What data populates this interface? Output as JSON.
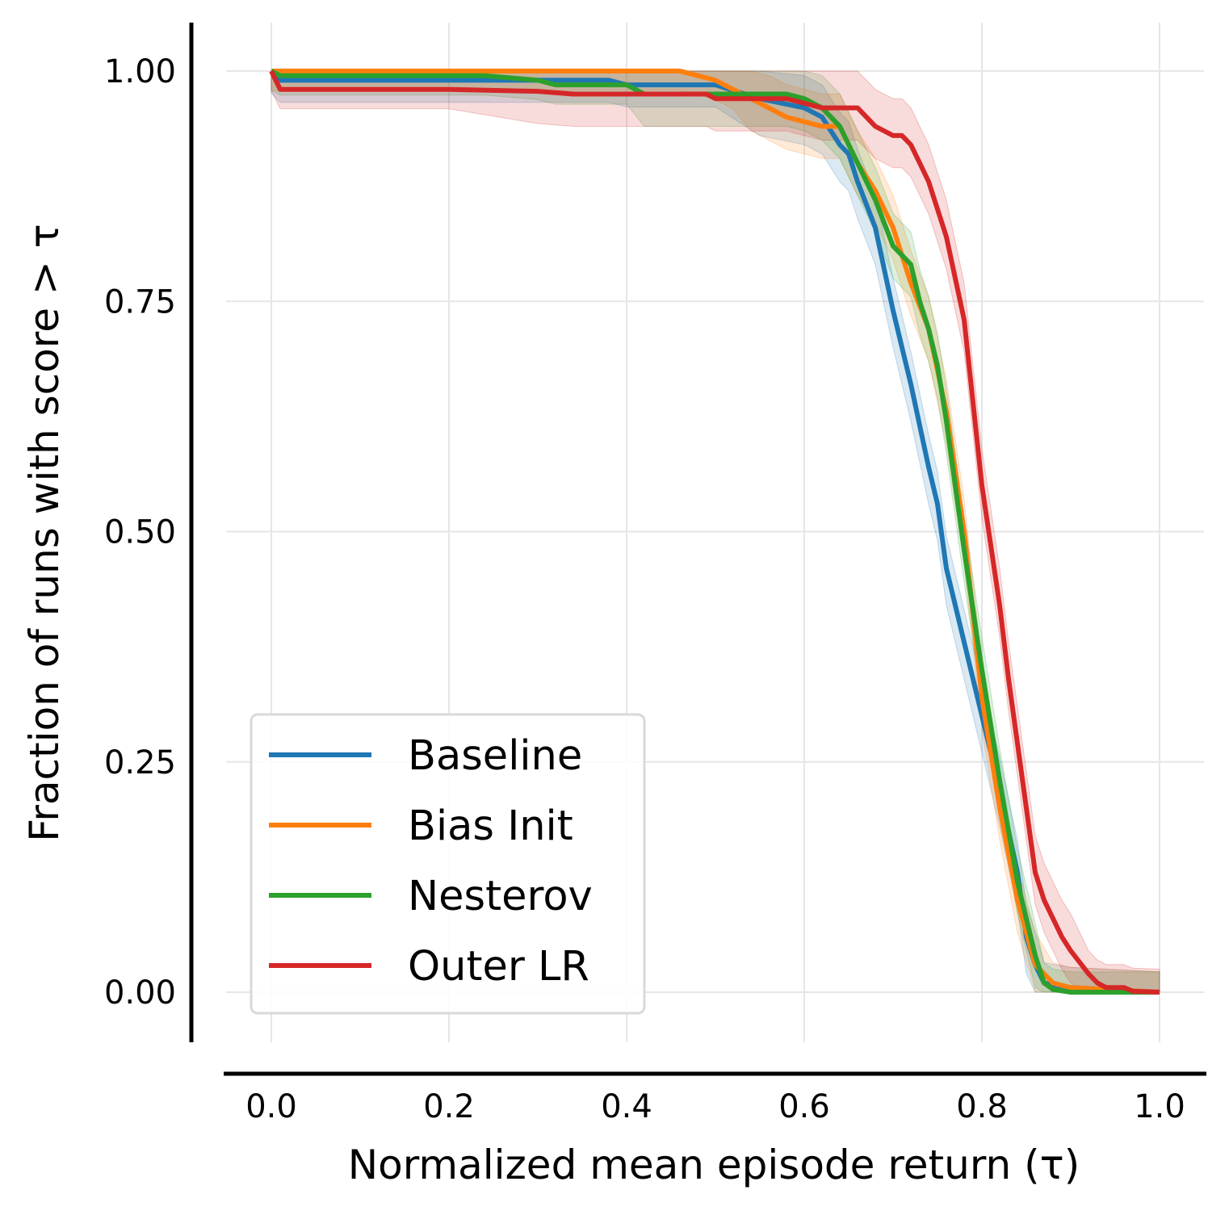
{
  "chart_data": {
    "type": "line",
    "title": "",
    "xlabel": "Normalized mean episode return (τ)",
    "ylabel": "Fraction of runs with score  > τ",
    "xlim": [
      -0.05,
      1.05
    ],
    "ylim": [
      -0.05,
      1.05
    ],
    "xticks": [
      0.0,
      0.2,
      0.4,
      0.6,
      0.8,
      1.0
    ],
    "xtick_labels": [
      "0.0",
      "0.2",
      "0.4",
      "0.6",
      "0.8",
      "1.0"
    ],
    "yticks": [
      0.0,
      0.25,
      0.5,
      0.75,
      1.0
    ],
    "ytick_labels": [
      "0.00",
      "0.25",
      "0.50",
      "0.75",
      "1.00"
    ],
    "grid": true,
    "legend_position": "lower-left",
    "series": [
      {
        "name": "Baseline",
        "color": "#1f77b4",
        "x": [
          0.0,
          0.01,
          0.1,
          0.2,
          0.3,
          0.38,
          0.4,
          0.5,
          0.55,
          0.6,
          0.62,
          0.64,
          0.65,
          0.66,
          0.68,
          0.7,
          0.72,
          0.74,
          0.75,
          0.76,
          0.78,
          0.8,
          0.82,
          0.84,
          0.85,
          0.86,
          0.87,
          0.9,
          1.0
        ],
        "y": [
          1.0,
          0.99,
          0.99,
          0.99,
          0.99,
          0.99,
          0.985,
          0.985,
          0.97,
          0.96,
          0.95,
          0.92,
          0.91,
          0.88,
          0.83,
          0.74,
          0.66,
          0.57,
          0.53,
          0.46,
          0.38,
          0.3,
          0.22,
          0.13,
          0.06,
          0.03,
          0.01,
          0.005,
          0.0
        ],
        "band": [
          0.022,
          0.04
        ]
      },
      {
        "name": "Bias Init",
        "color": "#ff7f0e",
        "x": [
          0.0,
          0.1,
          0.2,
          0.3,
          0.46,
          0.48,
          0.5,
          0.52,
          0.54,
          0.56,
          0.58,
          0.6,
          0.62,
          0.64,
          0.66,
          0.68,
          0.7,
          0.72,
          0.74,
          0.76,
          0.78,
          0.8,
          0.82,
          0.84,
          0.86,
          0.88,
          0.9,
          1.0
        ],
        "y": [
          1.0,
          1.0,
          1.0,
          1.0,
          1.0,
          0.995,
          0.99,
          0.98,
          0.97,
          0.96,
          0.95,
          0.945,
          0.94,
          0.94,
          0.9,
          0.87,
          0.83,
          0.77,
          0.72,
          0.63,
          0.5,
          0.32,
          0.2,
          0.1,
          0.03,
          0.01,
          0.005,
          0.0
        ],
        "band": [
          0.022,
          0.035
        ]
      },
      {
        "name": "Nesterov",
        "color": "#2ca02c",
        "x": [
          0.0,
          0.01,
          0.1,
          0.2,
          0.24,
          0.3,
          0.32,
          0.4,
          0.42,
          0.48,
          0.5,
          0.58,
          0.6,
          0.62,
          0.64,
          0.66,
          0.68,
          0.7,
          0.72,
          0.73,
          0.74,
          0.75,
          0.76,
          0.78,
          0.8,
          0.82,
          0.84,
          0.86,
          0.87,
          0.88,
          0.9,
          1.0
        ],
        "y": [
          1.0,
          0.995,
          0.995,
          0.995,
          0.995,
          0.99,
          0.985,
          0.985,
          0.975,
          0.975,
          0.975,
          0.975,
          0.97,
          0.96,
          0.94,
          0.9,
          0.86,
          0.81,
          0.79,
          0.75,
          0.72,
          0.68,
          0.62,
          0.48,
          0.35,
          0.23,
          0.12,
          0.04,
          0.01,
          0.003,
          0.0,
          0.0
        ],
        "band": [
          0.022,
          0.035
        ]
      },
      {
        "name": "Outer LR",
        "color": "#d62728",
        "x": [
          0.0,
          0.01,
          0.1,
          0.2,
          0.3,
          0.34,
          0.4,
          0.49,
          0.5,
          0.58,
          0.6,
          0.62,
          0.64,
          0.66,
          0.67,
          0.68,
          0.7,
          0.71,
          0.72,
          0.73,
          0.74,
          0.75,
          0.76,
          0.78,
          0.79,
          0.8,
          0.82,
          0.83,
          0.84,
          0.85,
          0.86,
          0.87,
          0.88,
          0.89,
          0.9,
          0.92,
          0.93,
          0.94,
          0.96,
          0.97,
          1.0
        ],
        "y": [
          1.0,
          0.98,
          0.98,
          0.98,
          0.978,
          0.975,
          0.975,
          0.975,
          0.97,
          0.97,
          0.965,
          0.96,
          0.96,
          0.96,
          0.95,
          0.94,
          0.93,
          0.93,
          0.92,
          0.9,
          0.88,
          0.85,
          0.82,
          0.73,
          0.64,
          0.55,
          0.42,
          0.34,
          0.27,
          0.2,
          0.13,
          0.1,
          0.08,
          0.06,
          0.045,
          0.02,
          0.01,
          0.005,
          0.005,
          0.001,
          0.0
        ],
        "band": [
          0.025,
          0.035
        ]
      }
    ]
  }
}
